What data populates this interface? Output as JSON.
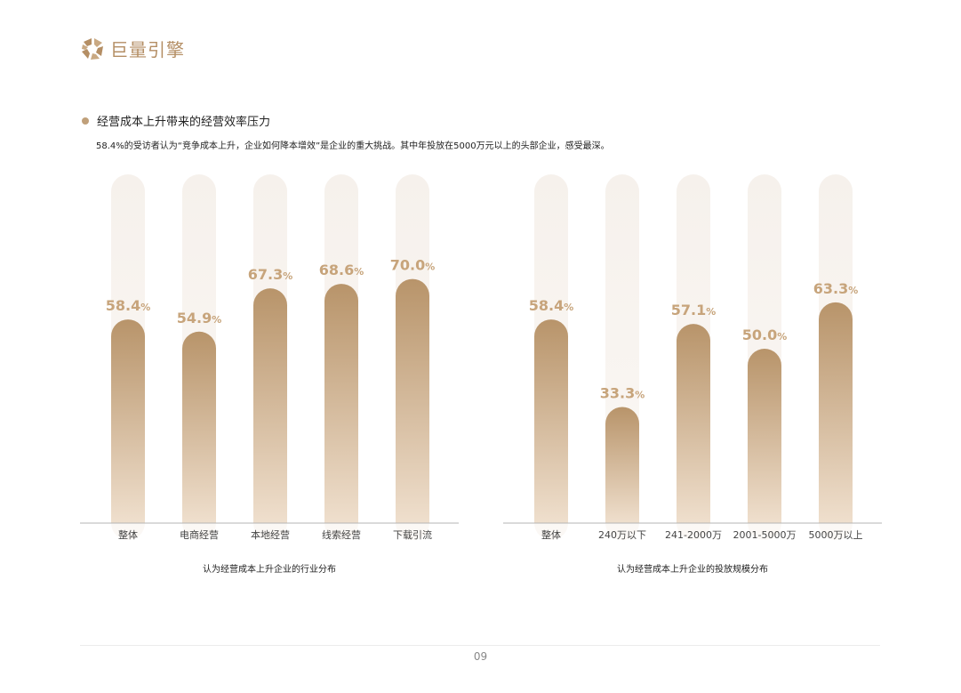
{
  "header": {
    "logo_text": "巨量引擎"
  },
  "section": {
    "title": "经营成本上升带来的经营效率压力",
    "subtitle": "58.4%的受访者认为“竞争成本上升，企业如何降本增效”是企业的重大挑战。其中年投放在5000万元以上的头部企业，感受最深。"
  },
  "colors": {
    "bar_top": "#b8946a",
    "bar_bottom": "#efdfcd",
    "track": "#f6f1ec",
    "label": "#c7a47b",
    "axis": "#b5b5b5"
  },
  "chart_data": [
    {
      "type": "bar",
      "categories": [
        "整体",
        "电商经营",
        "本地经营",
        "线索经营",
        "下载引流"
      ],
      "values": [
        58.4,
        54.9,
        67.3,
        68.6,
        70.0
      ],
      "value_labels": [
        "58.4",
        "54.9",
        "67.3",
        "68.6",
        "70.0"
      ],
      "unit": "%",
      "title": "认为经营成本上升企业的行业分布",
      "ylim": [
        0,
        100
      ]
    },
    {
      "type": "bar",
      "categories": [
        "整体",
        "240万以下",
        "241-2000万",
        "2001-5000万",
        "5000万以上"
      ],
      "values": [
        58.4,
        33.3,
        57.1,
        50.0,
        63.3
      ],
      "value_labels": [
        "58.4",
        "33.3",
        "57.1",
        "50.0",
        "63.3"
      ],
      "unit": "%",
      "title": "认为经营成本上升企业的投放规模分布",
      "ylim": [
        0,
        100
      ]
    }
  ],
  "footer": {
    "page_number": "09"
  }
}
